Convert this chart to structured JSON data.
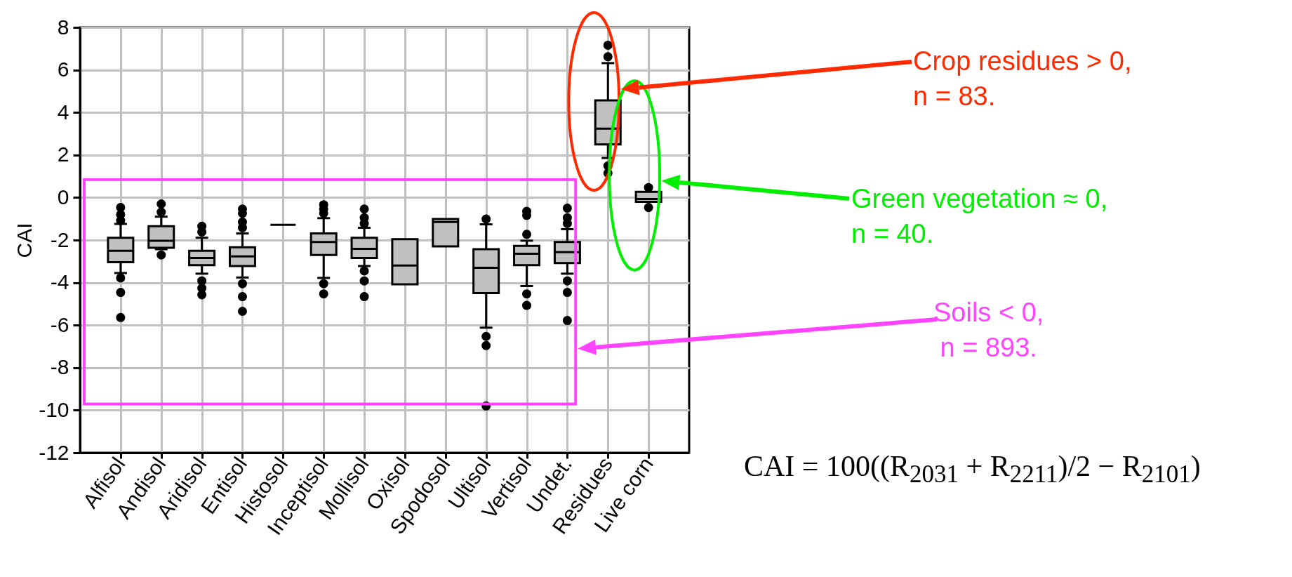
{
  "chart_data": {
    "type": "box",
    "ylabel": "CAI",
    "categories": [
      "Alfisol",
      "Andisol",
      "Aridisol",
      "Entisol",
      "Histosol",
      "Inceptisol",
      "Mollisol",
      "Oxisol",
      "Spodosol",
      "Ultisol",
      "Vertisol",
      "Undet.",
      "Residues",
      "Live corn"
    ],
    "colors": [
      "#c0c0c0",
      "#c0c0c0",
      "#c0c0c0",
      "#c0c0c0",
      "#000000",
      "#c0c0c0",
      "#c0c0c0",
      "#c0c0c0",
      "#c0c0c0",
      "#c0c0c0",
      "#c0c0c0",
      "#c0c0c0",
      "#c0c0c0",
      "#c0c0c0"
    ],
    "boxes": [
      {
        "low": -3.55,
        "q1": -3.04,
        "median": -2.5,
        "q3": -1.89,
        "high": -1.24,
        "outliers": [
          -0.47,
          -0.8,
          -1.08,
          -3.78,
          -4.46,
          -5.64
        ]
      },
      {
        "low": -2.43,
        "q1": -2.36,
        "median": -2.03,
        "q3": -1.35,
        "high": -0.9,
        "outliers": [
          -0.3,
          -0.68,
          -2.7
        ]
      },
      {
        "low": -3.58,
        "q1": -3.18,
        "median": -2.84,
        "q3": -2.5,
        "high": -1.89,
        "outliers": [
          -1.35,
          -1.62,
          -3.92,
          -4.26,
          -4.57
        ]
      },
      {
        "low": -3.76,
        "q1": -3.22,
        "median": -2.77,
        "q3": -2.34,
        "high": -1.69,
        "outliers": [
          -0.54,
          -0.74,
          -1.15,
          -1.42,
          -4.05,
          -4.66,
          -5.35
        ]
      },
      {
        "low": -1.28,
        "q1": -1.28,
        "median": -1.28,
        "q3": -1.28,
        "high": -1.28
      },
      {
        "low": -3.78,
        "q1": -2.7,
        "median": -2.09,
        "q3": -1.69,
        "high": -0.97,
        "outliers": [
          -0.34,
          -0.54,
          -0.74,
          -4.05,
          -4.53
        ]
      },
      {
        "low": -3.22,
        "q1": -2.84,
        "median": -2.41,
        "q3": -1.89,
        "high": -1.42,
        "outliers": [
          -0.54,
          -0.95,
          -1.22,
          -3.45,
          -3.92,
          -4.66
        ]
      },
      {
        "low": -4.08,
        "q1": -4.08,
        "median": -3.2,
        "q3": -1.96,
        "high": -1.96
      },
      {
        "low": -2.3,
        "q1": -2.3,
        "median": -1.15,
        "q3": -1.01,
        "high": -1.01
      },
      {
        "low": -6.12,
        "q1": -4.49,
        "median": -3.3,
        "q3": -2.43,
        "high": -1.26,
        "outliers": [
          -1.01,
          -6.53,
          -6.96,
          -9.8
        ]
      },
      {
        "low": -4.16,
        "q1": -3.18,
        "median": -2.64,
        "q3": -2.27,
        "high": -2.03,
        "outliers": [
          -0.65,
          -0.84,
          -1.73,
          -4.53,
          -5.07
        ]
      },
      {
        "low": -3.58,
        "q1": -3.08,
        "median": -2.57,
        "q3": -2.09,
        "high": -1.49,
        "outliers": [
          -0.5,
          -0.95,
          -1.22,
          -3.92,
          -4.46,
          -5.78
        ]
      },
      {
        "low": 1.86,
        "q1": 2.5,
        "median": 3.24,
        "q3": 4.57,
        "high": 6.32,
        "outliers": [
          7.16,
          6.62,
          1.49,
          1.15
        ]
      },
      {
        "low": -0.2,
        "q1": -0.2,
        "median": -0.07,
        "q3": 0.27,
        "high": 0.27,
        "outliers": [
          0.47,
          -0.47
        ]
      }
    ],
    "ylim": [
      -12,
      8
    ],
    "yticks": [
      -12,
      -10,
      -8,
      -6,
      -4,
      -2,
      0,
      2,
      4,
      6,
      8
    ],
    "grid": true,
    "annotations": [
      "Crop residues > 0,\nn = 83.",
      "Green vegetation ≈ 0,\nn = 40.",
      "Soils < 0,\nn = 893.",
      "CAI = 100((R$_{2031}$ + R$_{2211}$)/2 − R$_{2101}$)"
    ]
  }
}
